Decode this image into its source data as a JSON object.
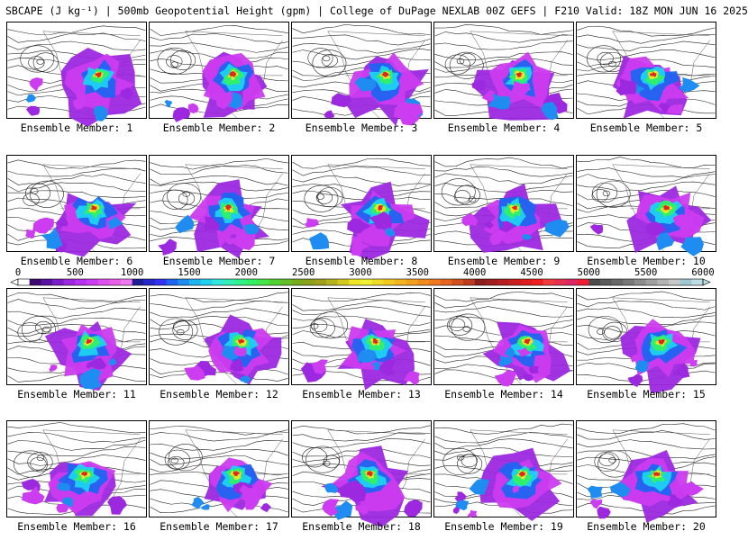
{
  "title": "SBCAPE (J kg⁻¹) | 500mb Geopotential Height (gpm) | College of DuPage NEXLAB 00Z GEFS | F210 Valid: 18Z MON JUN 16 2025",
  "panel_label_prefix": "Ensemble Member: ",
  "members": [
    "1",
    "2",
    "3",
    "4",
    "5",
    "6",
    "7",
    "8",
    "9",
    "10",
    "11",
    "12",
    "13",
    "14",
    "15",
    "16",
    "17",
    "18",
    "19",
    "20"
  ],
  "colorbar": {
    "tick_labels": [
      "0",
      "500",
      "1000",
      "1500",
      "2000",
      "2500",
      "3000",
      "3500",
      "4000",
      "4500",
      "5000",
      "5500",
      "6000"
    ],
    "min": 0,
    "max": 6000,
    "step": 100,
    "colors": [
      "#ffffff",
      "#3c0a6e",
      "#5a12a0",
      "#7a1ec8",
      "#9c28e0",
      "#b432f0",
      "#cc3cf0",
      "#e04ef0",
      "#e860e8",
      "#f078f0",
      "#1e1e96",
      "#2828c8",
      "#3232f0",
      "#1e64f0",
      "#1e8cf0",
      "#1eb4f0",
      "#1ed2f0",
      "#32e6dc",
      "#32f0b4",
      "#32f08c",
      "#32f064",
      "#46e646",
      "#50d232",
      "#64be28",
      "#78aa1e",
      "#8ca01e",
      "#a0a01e",
      "#b4b41e",
      "#d2c81e",
      "#f0e628",
      "#f0f032",
      "#f0dc28",
      "#f0c81e",
      "#f0b41e",
      "#f0a01e",
      "#f08c1e",
      "#f0781e",
      "#e6641e",
      "#d2501e",
      "#be3c1e",
      "#8c1e1e",
      "#a01e1e",
      "#b41e1e",
      "#c81e1e",
      "#dc1e1e",
      "#f01e1e",
      "#f03c3c",
      "#e63250",
      "#dc2864",
      "#f01e32",
      "#4b4b4b",
      "#5a5a5a",
      "#696969",
      "#787878",
      "#8c8c8c",
      "#a0a0a0",
      "#b4b4b4",
      "#c8c8c8",
      "#a0c8d2",
      "#bedce6"
    ]
  },
  "colors": {
    "border": "#000000",
    "contour": "#000000",
    "background": "#ffffff"
  }
}
